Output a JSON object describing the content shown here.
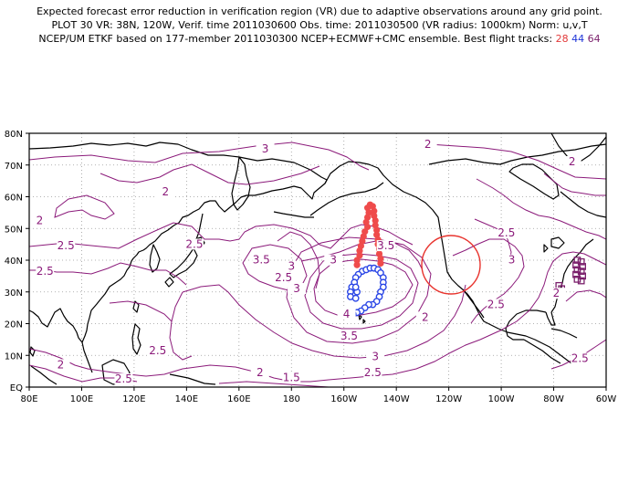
{
  "header": {
    "line1": "Expected forecast error reduction in verification region (VR) due to adaptive observations around any grid point.",
    "line2": "PLOT 30 VR: 38N, 120W, Verif. time 2011030600 Obs. time: 2011030500 (VR radius: 1000km) Norm: u,v,T",
    "line3_prefix": "NCEP/UM ETKF based on 177-member 2011030300 NCEP+ECMWF+CMC ensemble. Best flight tracks:",
    "track_28": "28",
    "track_44": "44",
    "track_64": "64"
  },
  "colors": {
    "contour": "#8b1a7a",
    "track_28": "#ef4b4b",
    "track_44": "#2a46e6",
    "track_64": "#7a1f6b",
    "verification_circle": "#e8332d",
    "coast": "#000000",
    "grid": "#9a9a9a"
  },
  "map": {
    "projection": "cylindrical equidistant",
    "lon_range": [
      80,
      300
    ],
    "lat_range": [
      0,
      80
    ],
    "x_tick_labels": [
      "80E",
      "100E",
      "120E",
      "140E",
      "160E",
      "180",
      "160W",
      "140W",
      "120W",
      "100W",
      "80W",
      "60W"
    ],
    "y_tick_labels": [
      "EQ",
      "10N",
      "20N",
      "30N",
      "40N",
      "50N",
      "60N",
      "70N",
      "80N"
    ],
    "grid": "dotted",
    "verification_region": {
      "center_lat": 38,
      "center_lon": -120,
      "radius_km": 1000
    },
    "contour_labels": [
      {
        "text": "2",
        "lat": 76,
        "lon": -128
      },
      {
        "text": "2",
        "lat": 70.5,
        "lon": -73
      },
      {
        "text": "3",
        "lat": 74.5,
        "lon": 170
      },
      {
        "text": "2",
        "lat": 61,
        "lon": 132
      },
      {
        "text": "2",
        "lat": 52,
        "lon": 84
      },
      {
        "text": "2.5",
        "lat": 44,
        "lon": 94
      },
      {
        "text": "2.5",
        "lat": 36,
        "lon": 86
      },
      {
        "text": "2.5",
        "lat": 44.5,
        "lon": 143
      },
      {
        "text": "3.5",
        "lat": 39.5,
        "lon": 168.5
      },
      {
        "text": "3",
        "lat": 37.5,
        "lon": 180
      },
      {
        "text": "3",
        "lat": 39.5,
        "lon": -164
      },
      {
        "text": "3.5",
        "lat": 44,
        "lon": -144
      },
      {
        "text": "2.5",
        "lat": 34,
        "lon": 177
      },
      {
        "text": "3",
        "lat": 30.5,
        "lon": 182
      },
      {
        "text": "4",
        "lat": 22.5,
        "lon": -159
      },
      {
        "text": "3.5",
        "lat": 15.5,
        "lon": -158
      },
      {
        "text": "3",
        "lat": 9,
        "lon": -148
      },
      {
        "text": "2.5",
        "lat": 4,
        "lon": -149
      },
      {
        "text": "2.5",
        "lat": 11,
        "lon": 129
      },
      {
        "text": "2",
        "lat": 6.5,
        "lon": 92
      },
      {
        "text": "2.5",
        "lat": 2,
        "lon": 116
      },
      {
        "text": "2",
        "lat": 4,
        "lon": 168
      },
      {
        "text": "1.5",
        "lat": 2.5,
        "lon": -180
      },
      {
        "text": "2",
        "lat": 21.5,
        "lon": -129
      },
      {
        "text": "2.5",
        "lat": 25.5,
        "lon": -102
      },
      {
        "text": "2.5",
        "lat": 48,
        "lon": -98
      },
      {
        "text": "3",
        "lat": 39.5,
        "lon": -96
      },
      {
        "text": "2",
        "lat": 29,
        "lon": -79
      },
      {
        "text": "2.5",
        "lat": 8.5,
        "lon": -70
      }
    ],
    "track_28_points": [
      [
        57.5,
        -150
      ],
      [
        56.5,
        -151
      ],
      [
        55,
        -150.5
      ],
      [
        53.5,
        -151
      ],
      [
        52,
        -151.5
      ],
      [
        50.5,
        -151
      ],
      [
        49,
        -152
      ],
      [
        47.5,
        -152.5
      ],
      [
        46,
        -153
      ],
      [
        44.5,
        -153.5
      ],
      [
        43,
        -154
      ],
      [
        41.5,
        -154
      ],
      [
        40,
        -155
      ],
      [
        38.5,
        -155
      ],
      [
        57,
        -149
      ],
      [
        55.5,
        -148.5
      ],
      [
        54,
        -148.5
      ],
      [
        52.5,
        -148
      ],
      [
        51,
        -148
      ],
      [
        49.5,
        -147.5
      ],
      [
        48,
        -147.5
      ],
      [
        46.5,
        -147
      ],
      [
        45,
        -147
      ],
      [
        43.5,
        -146.5
      ],
      [
        42,
        -146.5
      ],
      [
        40.5,
        -146
      ],
      [
        39,
        -146
      ]
    ],
    "track_44_points": [
      [
        36.5,
        -153
      ],
      [
        35.5,
        -154.5
      ],
      [
        34.5,
        -155.5
      ],
      [
        33,
        -156
      ],
      [
        31.5,
        -157
      ],
      [
        30,
        -157.5
      ],
      [
        28.5,
        -157.5
      ],
      [
        28,
        -155.5
      ],
      [
        30,
        -155
      ],
      [
        31.5,
        -155.5
      ],
      [
        37,
        -151.5
      ],
      [
        37.5,
        -150
      ],
      [
        37.5,
        -148.5
      ],
      [
        37,
        -147
      ],
      [
        36,
        -146
      ],
      [
        34.5,
        -145
      ],
      [
        33,
        -145
      ],
      [
        31.5,
        -145
      ],
      [
        30,
        -146
      ],
      [
        28.5,
        -146.5
      ],
      [
        27,
        -147.5
      ],
      [
        26,
        -149
      ],
      [
        26,
        -150.5
      ],
      [
        25,
        -152
      ],
      [
        24,
        -153.5
      ],
      [
        23.5,
        -155
      ],
      [
        23,
        -156.5
      ]
    ],
    "track_64_points": [
      [
        40,
        -71
      ],
      [
        38.5,
        -71.5
      ],
      [
        37,
        -71
      ],
      [
        35.5,
        -71.5
      ],
      [
        34,
        -71
      ],
      [
        39.5,
        -69.5
      ],
      [
        38,
        -69
      ],
      [
        36.5,
        -69.5
      ],
      [
        35,
        -69
      ],
      [
        33.5,
        -69.5
      ],
      [
        32,
        -78
      ],
      [
        31,
        -77
      ]
    ]
  }
}
